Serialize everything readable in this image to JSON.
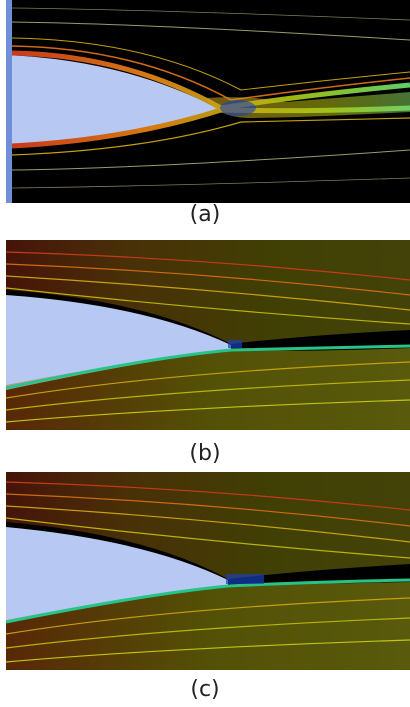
{
  "figure": {
    "panels": [
      {
        "id": "a",
        "caption": "(a)"
      },
      {
        "id": "b",
        "caption": "(b)"
      },
      {
        "id": "c",
        "caption": "(c)"
      }
    ],
    "colors": {
      "background": "#000000",
      "body": "#b7c8f2",
      "stagnation_edge": "#6f8fd8",
      "fast_stream": "#c8391a",
      "mid_stream": "#c8b400",
      "slow_stream": "#27c48a",
      "wake": "#1a3fb5"
    }
  }
}
